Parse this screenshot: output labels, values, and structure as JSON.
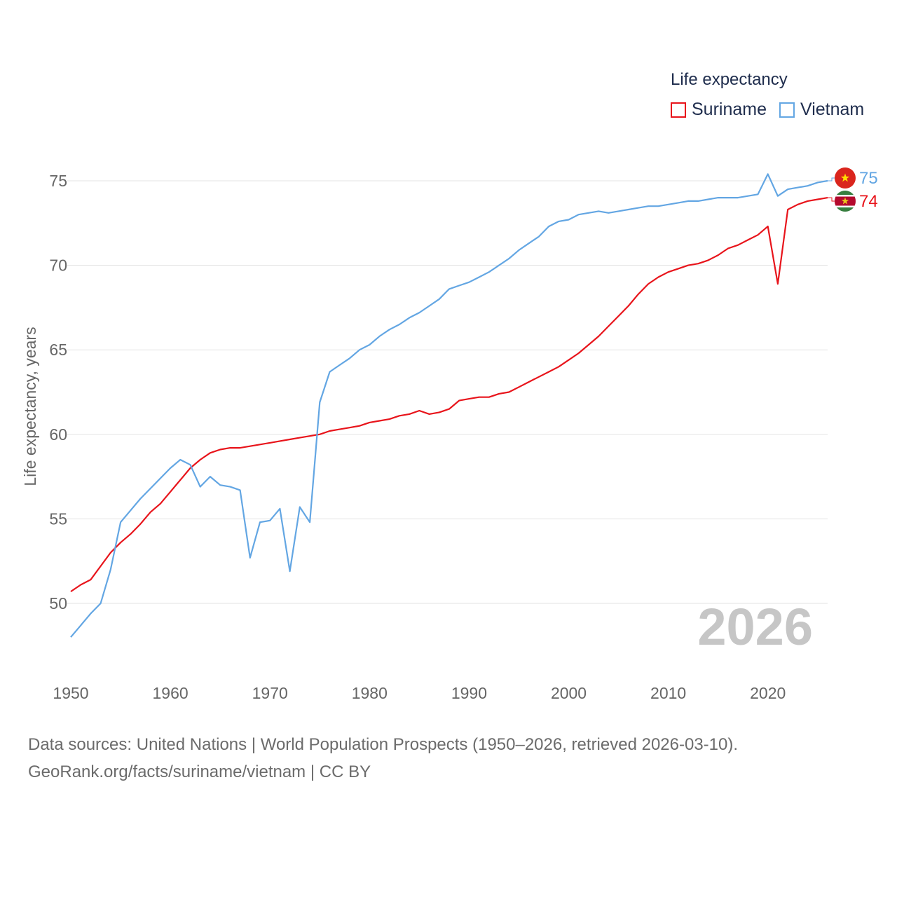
{
  "legend": {
    "title": "Life expectancy",
    "items": [
      {
        "label": "Suriname",
        "color": "#e8141b"
      },
      {
        "label": "Vietnam",
        "color": "#63a6e3"
      }
    ]
  },
  "source_line1": "Data sources: United Nations | World Population Prospects (1950–2026, retrieved 2026-03-10).",
  "source_line2": "GeoRank.org/facts/suriname/vietnam | CC BY",
  "chart_data": {
    "type": "line",
    "title": "Life expectancy",
    "xlabel": "",
    "ylabel": "Life expectancy, years",
    "xlim": [
      1950,
      2026
    ],
    "ylim": [
      48,
      75
    ],
    "x_ticks": [
      1950,
      1960,
      1970,
      1980,
      1990,
      2000,
      2010,
      2020
    ],
    "y_ticks": [
      50,
      55,
      60,
      65,
      70,
      75
    ],
    "year_watermark": "2026",
    "x": [
      1950,
      1951,
      1952,
      1953,
      1954,
      1955,
      1956,
      1957,
      1958,
      1959,
      1960,
      1961,
      1962,
      1963,
      1964,
      1965,
      1966,
      1967,
      1968,
      1969,
      1970,
      1971,
      1972,
      1973,
      1974,
      1975,
      1976,
      1977,
      1978,
      1979,
      1980,
      1981,
      1982,
      1983,
      1984,
      1985,
      1986,
      1987,
      1988,
      1989,
      1990,
      1991,
      1992,
      1993,
      1994,
      1995,
      1996,
      1997,
      1998,
      1999,
      2000,
      2001,
      2002,
      2003,
      2004,
      2005,
      2006,
      2007,
      2008,
      2009,
      2010,
      2011,
      2012,
      2013,
      2014,
      2015,
      2016,
      2017,
      2018,
      2019,
      2020,
      2021,
      2022,
      2023,
      2024,
      2025,
      2026
    ],
    "series": [
      {
        "name": "Suriname",
        "color": "#e8141b",
        "end_label": "74",
        "values": [
          50.7,
          51.1,
          51.4,
          52.2,
          53.0,
          53.6,
          54.1,
          54.7,
          55.4,
          55.9,
          56.6,
          57.3,
          58.0,
          58.5,
          58.9,
          59.1,
          59.2,
          59.2,
          59.3,
          59.4,
          59.5,
          59.6,
          59.7,
          59.8,
          59.9,
          60.0,
          60.2,
          60.3,
          60.4,
          60.5,
          60.7,
          60.8,
          60.9,
          61.1,
          61.2,
          61.4,
          61.2,
          61.3,
          61.5,
          62.0,
          62.1,
          62.2,
          62.2,
          62.4,
          62.5,
          62.8,
          63.1,
          63.4,
          63.7,
          64.0,
          64.4,
          64.8,
          65.3,
          65.8,
          66.4,
          67.0,
          67.6,
          68.3,
          68.9,
          69.3,
          69.6,
          69.8,
          70.0,
          70.1,
          70.3,
          70.6,
          71.0,
          71.2,
          71.5,
          71.8,
          72.3,
          68.9,
          73.3,
          73.6,
          73.8,
          73.9,
          74.0
        ]
      },
      {
        "name": "Vietnam",
        "color": "#63a6e3",
        "end_label": "75",
        "values": [
          48.0,
          48.7,
          49.4,
          50.0,
          52.0,
          54.8,
          55.5,
          56.2,
          56.8,
          57.4,
          58.0,
          58.5,
          58.2,
          56.9,
          57.5,
          57.0,
          56.9,
          56.7,
          52.7,
          54.8,
          54.9,
          55.6,
          51.9,
          55.7,
          54.8,
          61.9,
          63.7,
          64.1,
          64.5,
          65.0,
          65.3,
          65.8,
          66.2,
          66.5,
          66.9,
          67.2,
          67.6,
          68.0,
          68.6,
          68.8,
          69.0,
          69.3,
          69.6,
          70.0,
          70.4,
          70.9,
          71.3,
          71.7,
          72.3,
          72.6,
          72.7,
          73.0,
          73.1,
          73.2,
          73.1,
          73.2,
          73.3,
          73.4,
          73.5,
          73.5,
          73.6,
          73.7,
          73.8,
          73.8,
          73.9,
          74.0,
          74.0,
          74.0,
          74.1,
          74.2,
          75.4,
          74.1,
          74.5,
          74.6,
          74.7,
          74.9,
          75.0
        ]
      }
    ]
  }
}
